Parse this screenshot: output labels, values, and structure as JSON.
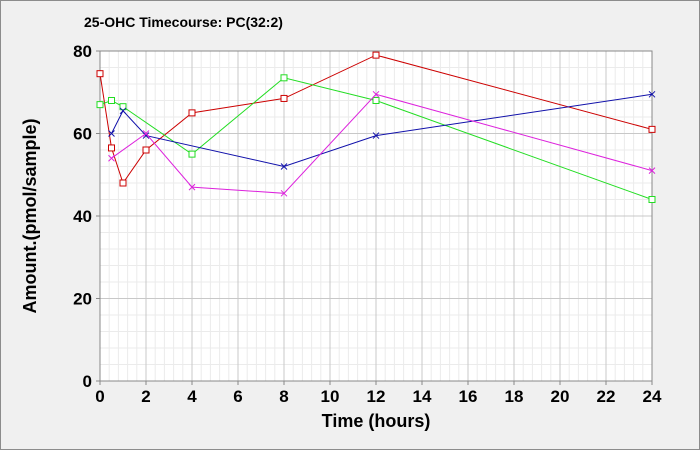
{
  "chart_data": {
    "type": "line",
    "title": "25-OHC Timecourse: PC(32:2)",
    "xlabel": "Time (hours)",
    "ylabel": "Amount.(pmol/sample)",
    "xlim": [
      0,
      24
    ],
    "ylim": [
      0,
      80
    ],
    "xticks": [
      0,
      2,
      4,
      6,
      8,
      10,
      12,
      14,
      16,
      18,
      20,
      22,
      24
    ],
    "yticks": [
      0,
      20,
      40,
      60,
      80
    ],
    "grid": true,
    "legend": "none",
    "series": [
      {
        "name": "series-red",
        "color": "#cc0000",
        "marker": "square",
        "x": [
          0,
          0.5,
          1,
          2,
          4,
          8,
          12,
          24
        ],
        "y": [
          74.5,
          56.5,
          48,
          56,
          65,
          68.5,
          79,
          61
        ]
      },
      {
        "name": "series-green",
        "color": "#22dd22",
        "marker": "square",
        "x": [
          0,
          0.5,
          1,
          4,
          8,
          12,
          24
        ],
        "y": [
          67,
          68,
          66.5,
          55,
          73.5,
          68,
          44
        ]
      },
      {
        "name": "series-blue",
        "color": "#1010aa",
        "marker": "x",
        "x": [
          0.5,
          1,
          2,
          8,
          12,
          24
        ],
        "y": [
          60,
          65.5,
          59.5,
          52,
          59.5,
          69.5
        ]
      },
      {
        "name": "series-magenta",
        "color": "#dd22dd",
        "marker": "x",
        "x": [
          0.5,
          2,
          4,
          8,
          12,
          24
        ],
        "y": [
          54,
          60,
          47,
          45.5,
          69.5,
          51
        ]
      }
    ]
  }
}
